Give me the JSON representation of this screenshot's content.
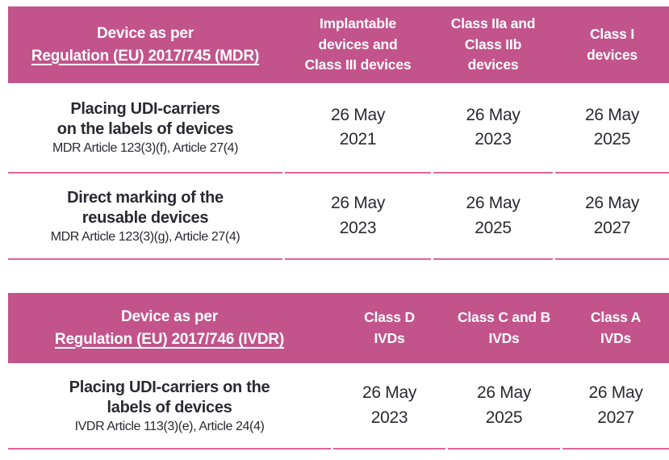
{
  "colors": {
    "header_bg": "#c2538b",
    "header_text": "#ffffff",
    "body_text": "#2b2a33",
    "divider": "#e2639b"
  },
  "tables": [
    {
      "name": "MDR",
      "header": {
        "device_line1": "Device as per",
        "device_line2": "Regulation (EU) 2017/745 (MDR)",
        "columns": [
          {
            "lines": [
              "Implantable",
              "devices and",
              "Class III devices"
            ]
          },
          {
            "lines": [
              "Class IIa and",
              "Class IIb",
              "devices"
            ]
          },
          {
            "lines": [
              "Class I",
              "devices"
            ]
          }
        ]
      },
      "rows": [
        {
          "title_lines": [
            "Placing UDI-carriers",
            "on the labels of devices"
          ],
          "reference": "MDR Article 123(3)(f), Article 27(4)",
          "dates": [
            {
              "line1": "26 May",
              "line2": "2021"
            },
            {
              "line1": "26 May",
              "line2": "2023"
            },
            {
              "line1": "26 May",
              "line2": "2025"
            }
          ]
        },
        {
          "title_lines": [
            "Direct marking of the",
            "reusable devices"
          ],
          "reference": "MDR Article 123(3)(g), Article 27(4)",
          "dates": [
            {
              "line1": "26 May",
              "line2": "2023"
            },
            {
              "line1": "26 May",
              "line2": "2025"
            },
            {
              "line1": "26 May",
              "line2": "2027"
            }
          ]
        }
      ]
    },
    {
      "name": "IVDR",
      "header": {
        "device_line1": "Device as per",
        "device_line2": "Regulation (EU) 2017/746 (IVDR)",
        "columns": [
          {
            "lines": [
              "Class D",
              "IVDs"
            ]
          },
          {
            "lines": [
              "Class C and B",
              "IVDs"
            ]
          },
          {
            "lines": [
              "Class A",
              "IVDs"
            ]
          }
        ]
      },
      "rows": [
        {
          "title_lines": [
            "Placing UDI-carriers on the",
            "labels of devices"
          ],
          "reference": "IVDR Article 113(3)(e), Article 24(4)",
          "dates": [
            {
              "line1": "26 May",
              "line2": "2023"
            },
            {
              "line1": "26 May",
              "line2": "2025"
            },
            {
              "line1": "26 May",
              "line2": "2027"
            }
          ]
        }
      ]
    }
  ]
}
